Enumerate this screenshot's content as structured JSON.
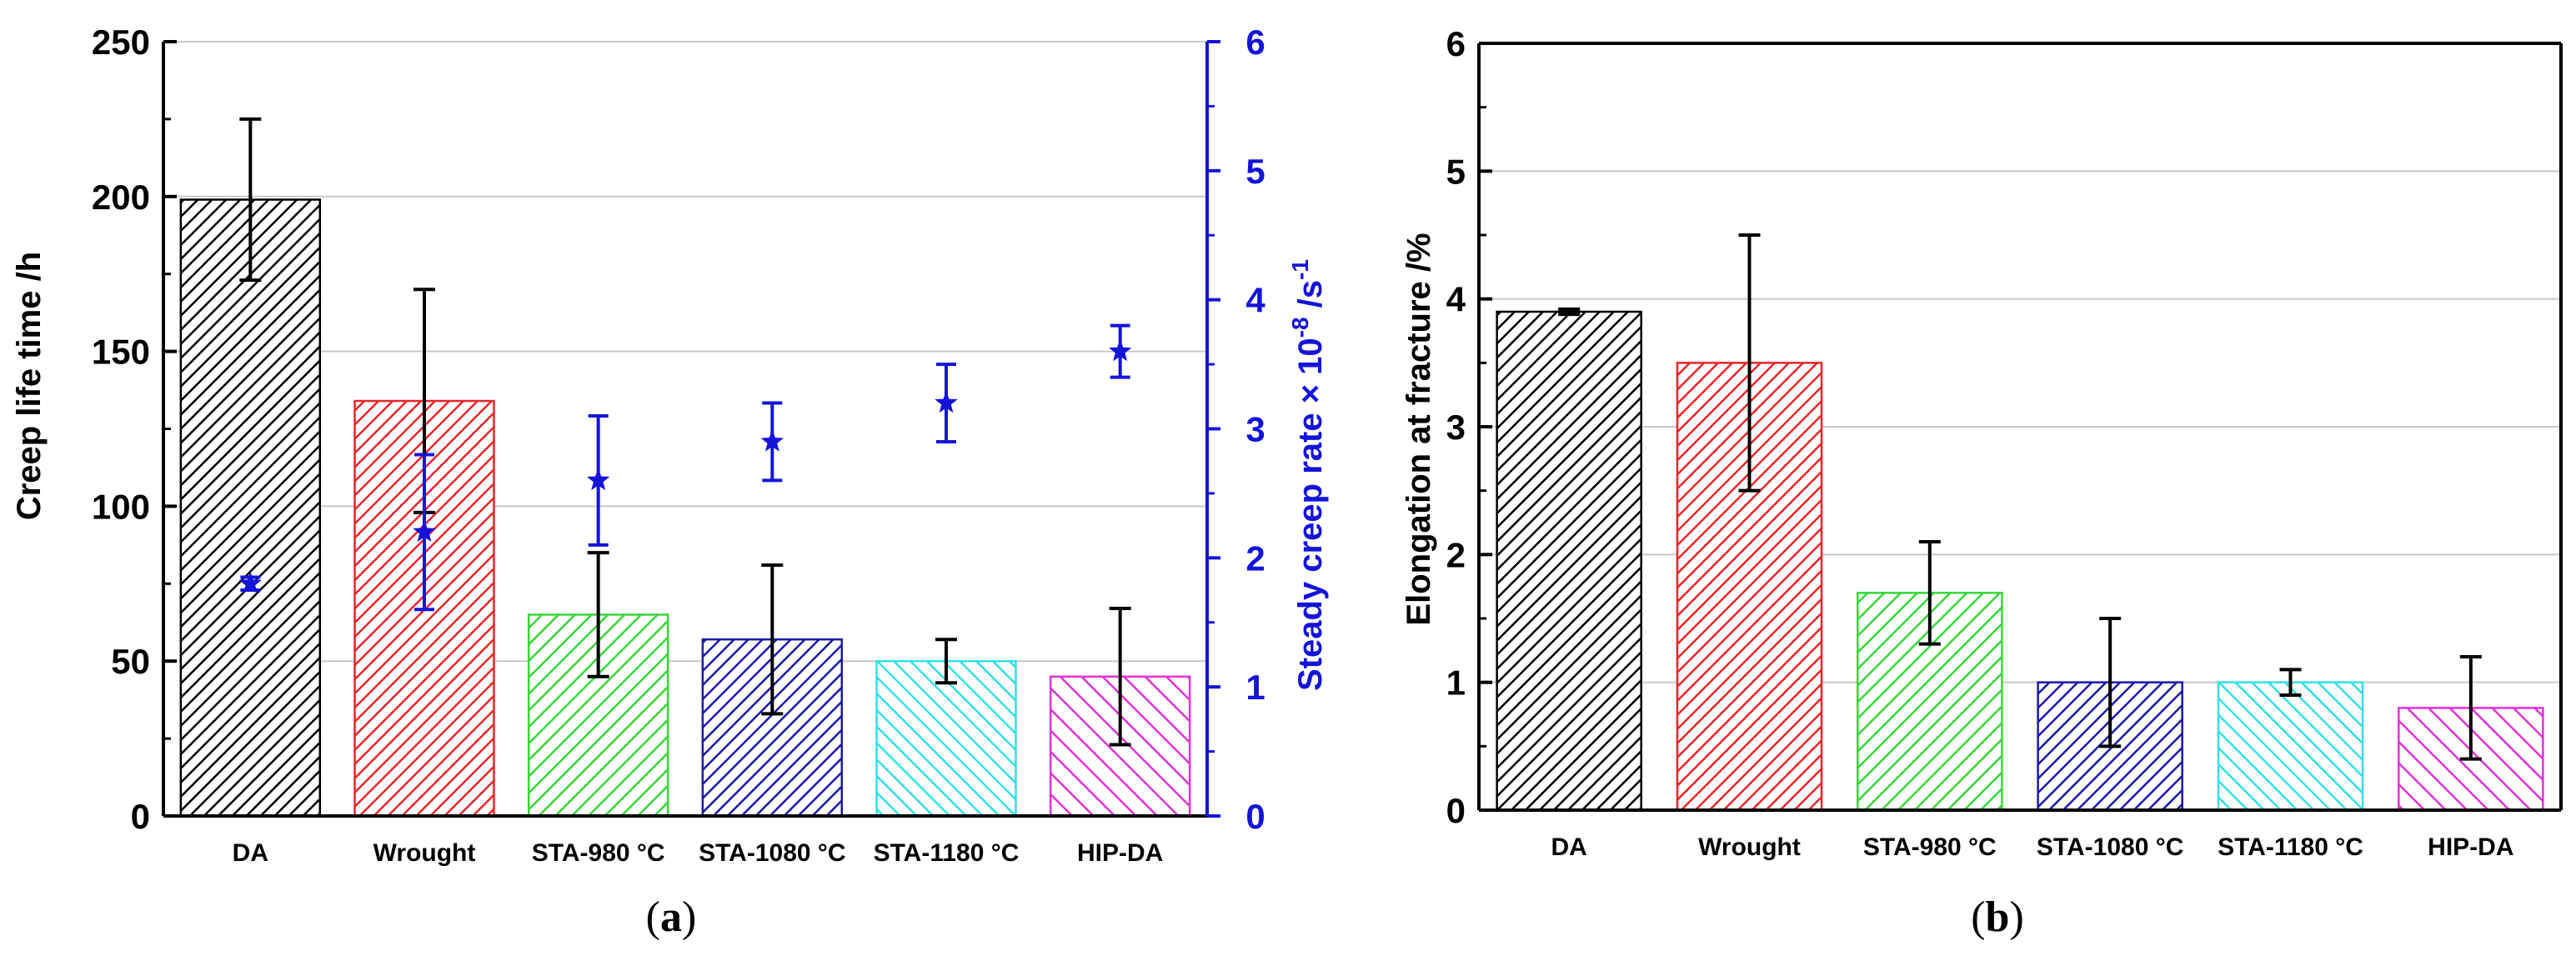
{
  "colors": {
    "DA": "#000000",
    "Wrought": "#e8262a",
    "STA-980": "#39d639",
    "STA-1080": "#1a1aa6",
    "STA-1180": "#33e0e6",
    "HIP-DA": "#e233d8",
    "rate_axis": "#1414d8",
    "grid": "#c8c8c8"
  },
  "chart_data": [
    {
      "type": "bar",
      "panel_label": "a",
      "categories": [
        "DA",
        "Wrought",
        "STA-980 °C",
        "STA-1080 °C",
        "STA-1180 °C",
        "HIP-DA"
      ],
      "series": [
        {
          "name": "Creep life time",
          "axis": "left",
          "values": [
            199,
            134,
            65,
            57,
            50,
            45
          ],
          "error": [
            26,
            36,
            20,
            24,
            7,
            22
          ]
        },
        {
          "name": "Steady creep rate",
          "axis": "right",
          "type": "scatter",
          "marker": "star",
          "values": [
            1.8,
            2.2,
            2.6,
            2.9,
            3.2,
            3.6
          ],
          "error": [
            0.05,
            0.6,
            0.5,
            0.3,
            0.3,
            0.2
          ]
        }
      ],
      "ylabel": "Creep life time /h",
      "ylim": [
        0,
        250
      ],
      "yticks": [
        "0",
        "50",
        "100",
        "150",
        "200",
        "250"
      ],
      "y2label_main": "Steady creep rate × 10",
      "y2label_exp": "-8",
      "y2label_unit": " /s",
      "y2label_unit_exp": "-1",
      "y2lim": [
        0,
        6
      ],
      "y2ticks": [
        "0",
        "1",
        "2",
        "3",
        "4",
        "5",
        "6"
      ],
      "grid": true
    },
    {
      "type": "bar",
      "panel_label": "b",
      "categories": [
        "DA",
        "Wrought",
        "STA-980 °C",
        "STA-1080 °C",
        "STA-1180 °C",
        "HIP-DA"
      ],
      "series": [
        {
          "name": "Elongation at fracture",
          "values": [
            3.9,
            3.5,
            1.7,
            1.0,
            1.0,
            0.8
          ],
          "error": [
            0.02,
            1.0,
            0.4,
            0.5,
            0.1,
            0.4
          ]
        }
      ],
      "ylabel": "Elongation at fracture /%",
      "ylim": [
        0,
        6
      ],
      "yticks": [
        "0",
        "1",
        "2",
        "3",
        "4",
        "5",
        "6"
      ],
      "grid": true
    }
  ]
}
